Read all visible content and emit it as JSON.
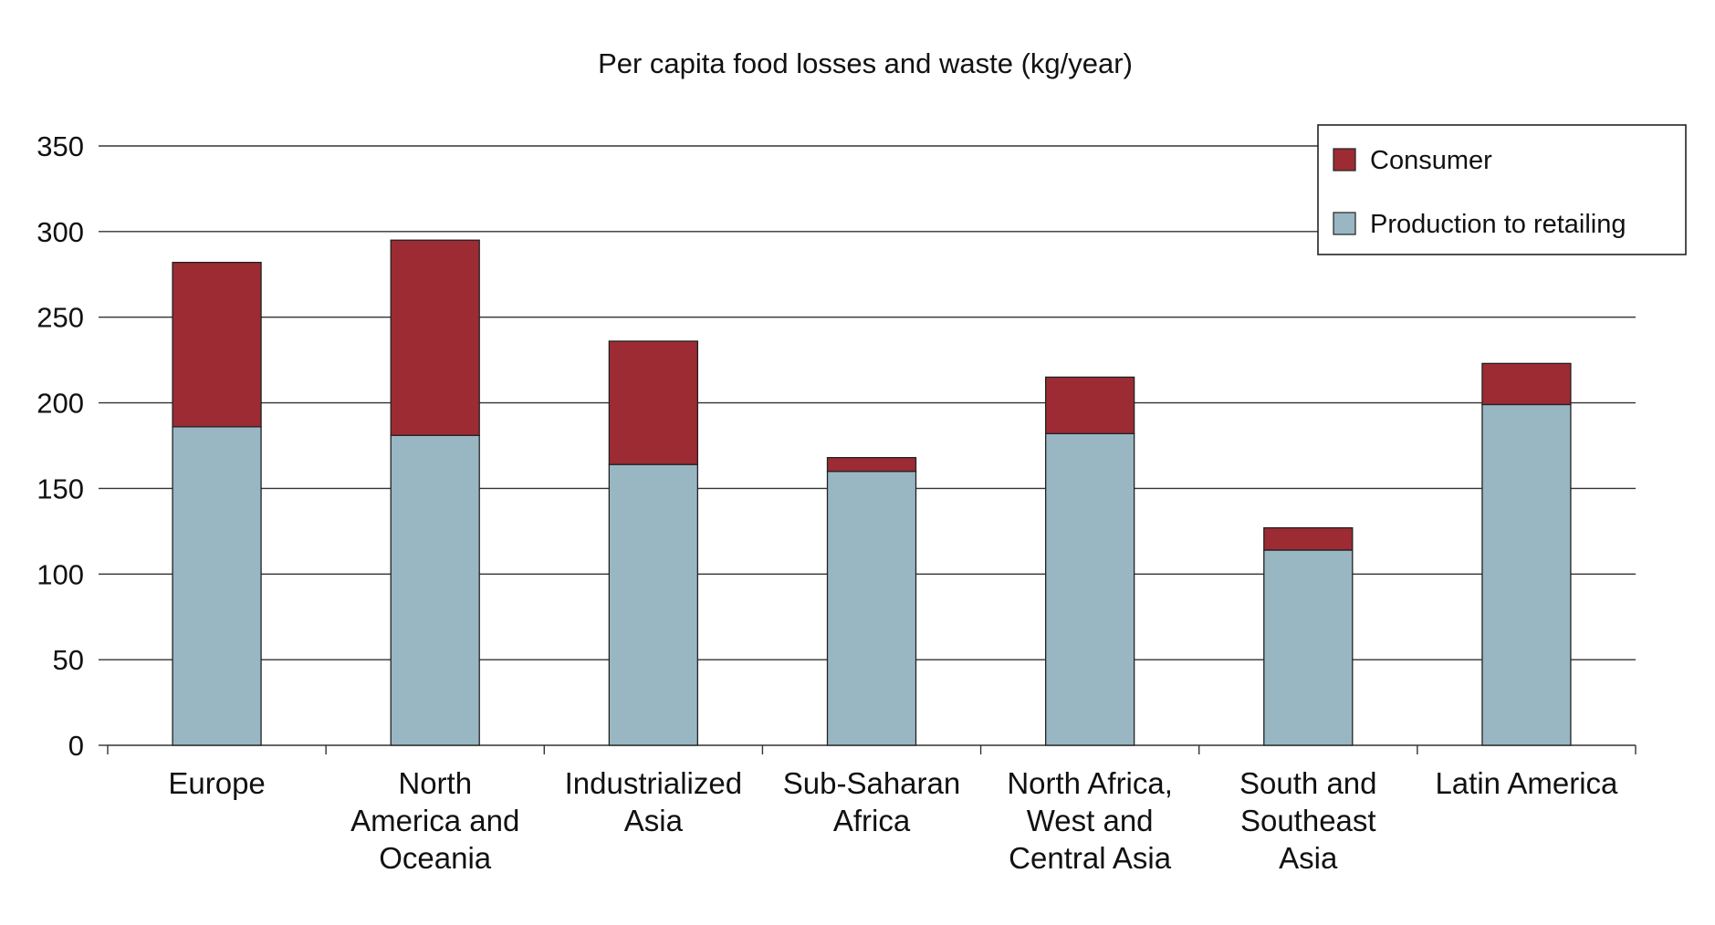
{
  "chart_data": {
    "type": "bar",
    "stacked": true,
    "title": "Per capita food losses and waste (kg/year)",
    "xlabel": "",
    "ylabel": "",
    "ylim": [
      0,
      350
    ],
    "yticks": [
      0,
      50,
      100,
      150,
      200,
      250,
      300,
      350
    ],
    "grid": true,
    "legend_position": "top-right",
    "categories": [
      [
        "Europe"
      ],
      [
        "North",
        "America and",
        "Oceania"
      ],
      [
        "Industrialized",
        "Asia"
      ],
      [
        "Sub-Saharan",
        "Africa"
      ],
      [
        "North Africa,",
        "West and",
        "Central Asia"
      ],
      [
        "South and",
        "Southeast",
        "Asia"
      ],
      [
        "Latin America"
      ]
    ],
    "series": [
      {
        "name": "Production to retailing",
        "color": "#99b6c3",
        "values": [
          186,
          181,
          164,
          160,
          182,
          114,
          199
        ]
      },
      {
        "name": "Consumer",
        "color": "#9c2b33",
        "values": [
          96,
          114,
          72,
          8,
          33,
          13,
          24
        ]
      }
    ],
    "legend_order": [
      "Consumer",
      "Production to retailing"
    ]
  }
}
